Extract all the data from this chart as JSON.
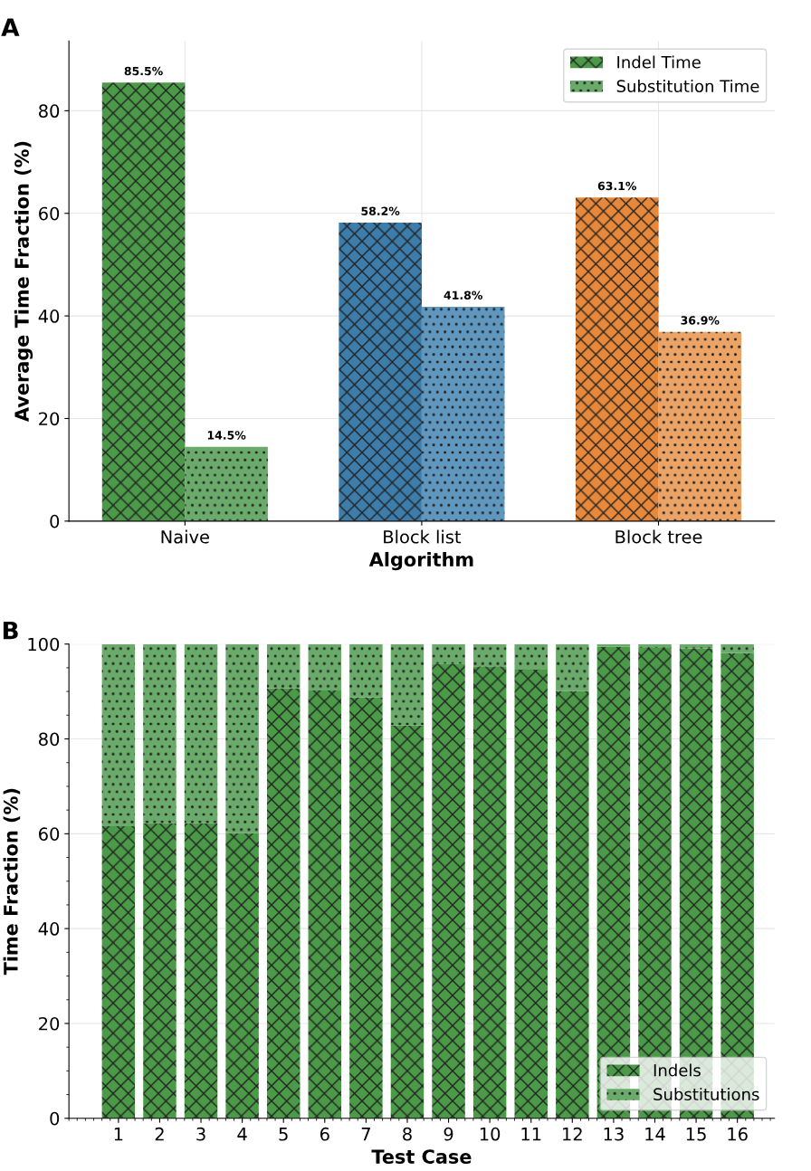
{
  "chart_data": [
    {
      "type": "bar",
      "xlabel": "Algorithm",
      "ylabel": "Average Time Fraction (%)",
      "annotations": [
        "A"
      ],
      "categories": [
        "Naive",
        "Block list",
        "Block tree"
      ],
      "series": [
        {
          "name": "Indel Time",
          "colors": [
            "#4a9a48",
            "#3c7dab",
            "#e8883a"
          ],
          "values": [
            85.5,
            58.2,
            63.1
          ],
          "value_labels": [
            "85.5%",
            "58.2%",
            "63.1%"
          ]
        },
        {
          "name": "Substitution Time",
          "colors": [
            "#6aaa6a",
            "#5f97bf",
            "#eba366"
          ],
          "values": [
            14.5,
            41.8,
            36.9
          ],
          "value_labels": [
            "14.5%",
            "41.8%",
            "36.9%"
          ]
        }
      ],
      "ylim": [
        0,
        93.6
      ],
      "yticks": [
        0,
        20,
        40,
        60,
        80
      ],
      "grid": true,
      "legend": "top right"
    },
    {
      "type": "bar",
      "stacked": true,
      "xlabel": "Test Case",
      "ylabel": "Time Fraction (%)",
      "annotations": [
        "B"
      ],
      "x": [
        1,
        2,
        3,
        4,
        5,
        6,
        7,
        8,
        9,
        10,
        11,
        12,
        13,
        14,
        15,
        16
      ],
      "series": [
        {
          "name": "Indels",
          "color": "#4a9a48",
          "values": [
            61.6,
            62.2,
            62.2,
            60.1,
            90.7,
            90.2,
            88.8,
            82.8,
            95.9,
            95.3,
            94.6,
            90.1,
            99.4,
            99.2,
            99.1,
            98.1
          ]
        },
        {
          "name": "Substitutions",
          "color": "#6aaa6a",
          "values": [
            38.4,
            37.8,
            37.8,
            39.9,
            9.3,
            9.8,
            11.2,
            17.2,
            4.1,
            4.7,
            5.4,
            9.9,
            0.6,
            0.8,
            0.9,
            1.9
          ]
        }
      ],
      "xlim": [
        -0.2,
        16.9
      ],
      "xticks": [
        1,
        2,
        3,
        4,
        5,
        6,
        7,
        8,
        9,
        10,
        11,
        12,
        13,
        14,
        15,
        16
      ],
      "ylim": [
        0,
        100
      ],
      "yticks": [
        0,
        20,
        40,
        60,
        80,
        100
      ],
      "grid": true,
      "legend": "bottom right"
    }
  ]
}
